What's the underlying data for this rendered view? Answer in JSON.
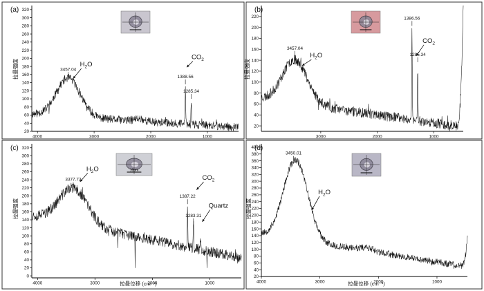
{
  "chart_data": [
    {
      "type": "line",
      "panel_label": "(a)",
      "ylabel": "拉曼强度",
      "xlabel": "",
      "xlim": [
        4100,
        450
      ],
      "ylim": [
        20,
        330
      ],
      "xticks": [
        4000,
        3000,
        2000,
        1000
      ],
      "yticks": [
        20,
        40,
        60,
        80,
        100,
        120,
        140,
        160,
        180,
        200,
        220,
        240,
        260,
        280,
        300,
        320
      ],
      "baseline": {
        "start": 62,
        "end": 30
      },
      "bands": [
        {
          "center": 3457,
          "height": 95,
          "width": 210
        },
        {
          "center": 1388.56,
          "height": 95,
          "width": 5
        },
        {
          "center": 1285.34,
          "height": 60,
          "width": 5
        },
        {
          "center": 2200,
          "height": 6,
          "width": 80
        }
      ],
      "noise": 10,
      "seed": 11,
      "annotations": [
        {
          "text": "3457.04",
          "x": 3457.04,
          "kind": "peak"
        },
        {
          "text": "1388.56",
          "x": 1388.56,
          "kind": "peak"
        },
        {
          "text": "1285.34",
          "x": 1285.34,
          "kind": "peak"
        }
      ],
      "species": [
        {
          "text": "H",
          "sub": "2",
          "tail": "O",
          "x": 3250,
          "y": 180,
          "to": [
            3370,
            150
          ]
        },
        {
          "text": "CO",
          "sub": "2",
          "tail": "",
          "x": 1280,
          "y": 198,
          "to": [
            1365,
            178
          ]
        }
      ],
      "image_tint": "#c9c6cf",
      "image_scale": ""
    },
    {
      "type": "line",
      "panel_label": "(b)",
      "ylabel": "拉曼强度",
      "xlabel": "",
      "xlim": [
        4050,
        480
      ],
      "ylim": [
        10,
        240
      ],
      "xticks": [
        3000,
        2000,
        1000
      ],
      "yticks": [
        20,
        40,
        60,
        80,
        100,
        120,
        140,
        160,
        180,
        200,
        220
      ],
      "baseline": {
        "start": 70,
        "end": 18
      },
      "bands": [
        {
          "center": 3457,
          "height": 80,
          "width": 220
        },
        {
          "center": 1386.56,
          "height": 165,
          "width": 5
        },
        {
          "center": 1285.34,
          "height": 100,
          "width": 5
        }
      ],
      "noise": 9,
      "seed": 23,
      "rise_end": 230,
      "annotations": [
        {
          "text": "3457.04",
          "x": 3457.04,
          "kind": "peak"
        },
        {
          "text": "1386.56",
          "x": 1386.56,
          "kind": "peak"
        },
        {
          "text": "1285.34",
          "x": 1285.34,
          "kind": "peak"
        }
      ],
      "species": [
        {
          "text": "H",
          "sub": "2",
          "tail": "O",
          "x": 3190,
          "y": 145,
          "to": [
            3330,
            130
          ]
        },
        {
          "text": "CO",
          "sub": "2",
          "tail": "",
          "x": 1200,
          "y": 172,
          "to": [
            1310,
            148
          ]
        }
      ],
      "image_tint": "#d79a9e",
      "image_scale": ""
    },
    {
      "type": "line",
      "panel_label": "(c)",
      "ylabel": "拉曼强度",
      "xlabel": "拉曼位移 (cm⁻¹)",
      "xlim": [
        4100,
        450
      ],
      "ylim": [
        -5,
        330
      ],
      "xticks": [
        4000,
        3000,
        2000,
        1000
      ],
      "yticks": [
        0,
        20,
        40,
        60,
        80,
        100,
        120,
        140,
        160,
        180,
        200,
        220,
        240,
        260,
        280,
        300,
        320
      ],
      "baseline": {
        "start": 150,
        "end": 45
      },
      "bands": [
        {
          "center": 3377.72,
          "height": 90,
          "width": 250
        },
        {
          "center": 1387.22,
          "height": 105,
          "width": 5
        },
        {
          "center": 1283.31,
          "height": 60,
          "width": 5
        },
        {
          "center": 1160,
          "height": 30,
          "width": 6
        }
      ],
      "noise": 13,
      "seed": 37,
      "spikes": [
        [
          2300,
          20
        ],
        [
          1050,
          20
        ],
        [
          900,
          60
        ],
        [
          2600,
          70
        ]
      ],
      "annotations": [
        {
          "text": "3377.72",
          "x": 3377.72,
          "kind": "peak"
        },
        {
          "text": "1387.22",
          "x": 1387.22,
          "kind": "peak"
        },
        {
          "text": "1283.31",
          "x": 1283.31,
          "kind": "peak"
        }
      ],
      "species": [
        {
          "text": "H",
          "sub": "2",
          "tail": "O",
          "x": 3150,
          "y": 262,
          "to": [
            3260,
            235
          ]
        },
        {
          "text": "CO",
          "sub": "2",
          "tail": "",
          "x": 1130,
          "y": 240,
          "to": [
            1230,
            215
          ]
        },
        {
          "text": "Quartz",
          "sub": "",
          "tail": "",
          "x": 1020,
          "y": 170,
          "to": [
            1130,
            135
          ]
        }
      ],
      "image_tint": "#cfd0d6",
      "image_scale": "10μm"
    },
    {
      "type": "line",
      "panel_label": "(d)",
      "ylabel": "拉曼强度",
      "xlabel": "拉曼位移 (cm⁻¹)",
      "xlim": [
        4000,
        480
      ],
      "ylim": [
        20,
        410
      ],
      "xticks": [
        4000,
        3000,
        2000,
        1000
      ],
      "yticks": [
        20,
        40,
        60,
        80,
        100,
        120,
        140,
        160,
        180,
        200,
        220,
        240,
        260,
        280,
        300,
        320,
        340,
        360,
        380,
        400
      ],
      "baseline": {
        "start": 145,
        "end": 48
      },
      "bands": [
        {
          "center": 3450.01,
          "height": 205,
          "width": 190
        },
        {
          "center": 3250,
          "height": 55,
          "width": 160
        },
        {
          "center": 2200,
          "height": 10,
          "width": 120
        }
      ],
      "noise": 10,
      "seed": 53,
      "rise_end": 85,
      "annotations": [
        {
          "text": "3450.01",
          "x": 3450.01,
          "kind": "peak"
        }
      ],
      "species": [
        {
          "text": "H",
          "sub": "2",
          "tail": "O",
          "x": 3030,
          "y": 262,
          "to": [
            3140,
            215
          ]
        }
      ],
      "image_tint": "#b9b7c6",
      "image_scale": ""
    }
  ]
}
